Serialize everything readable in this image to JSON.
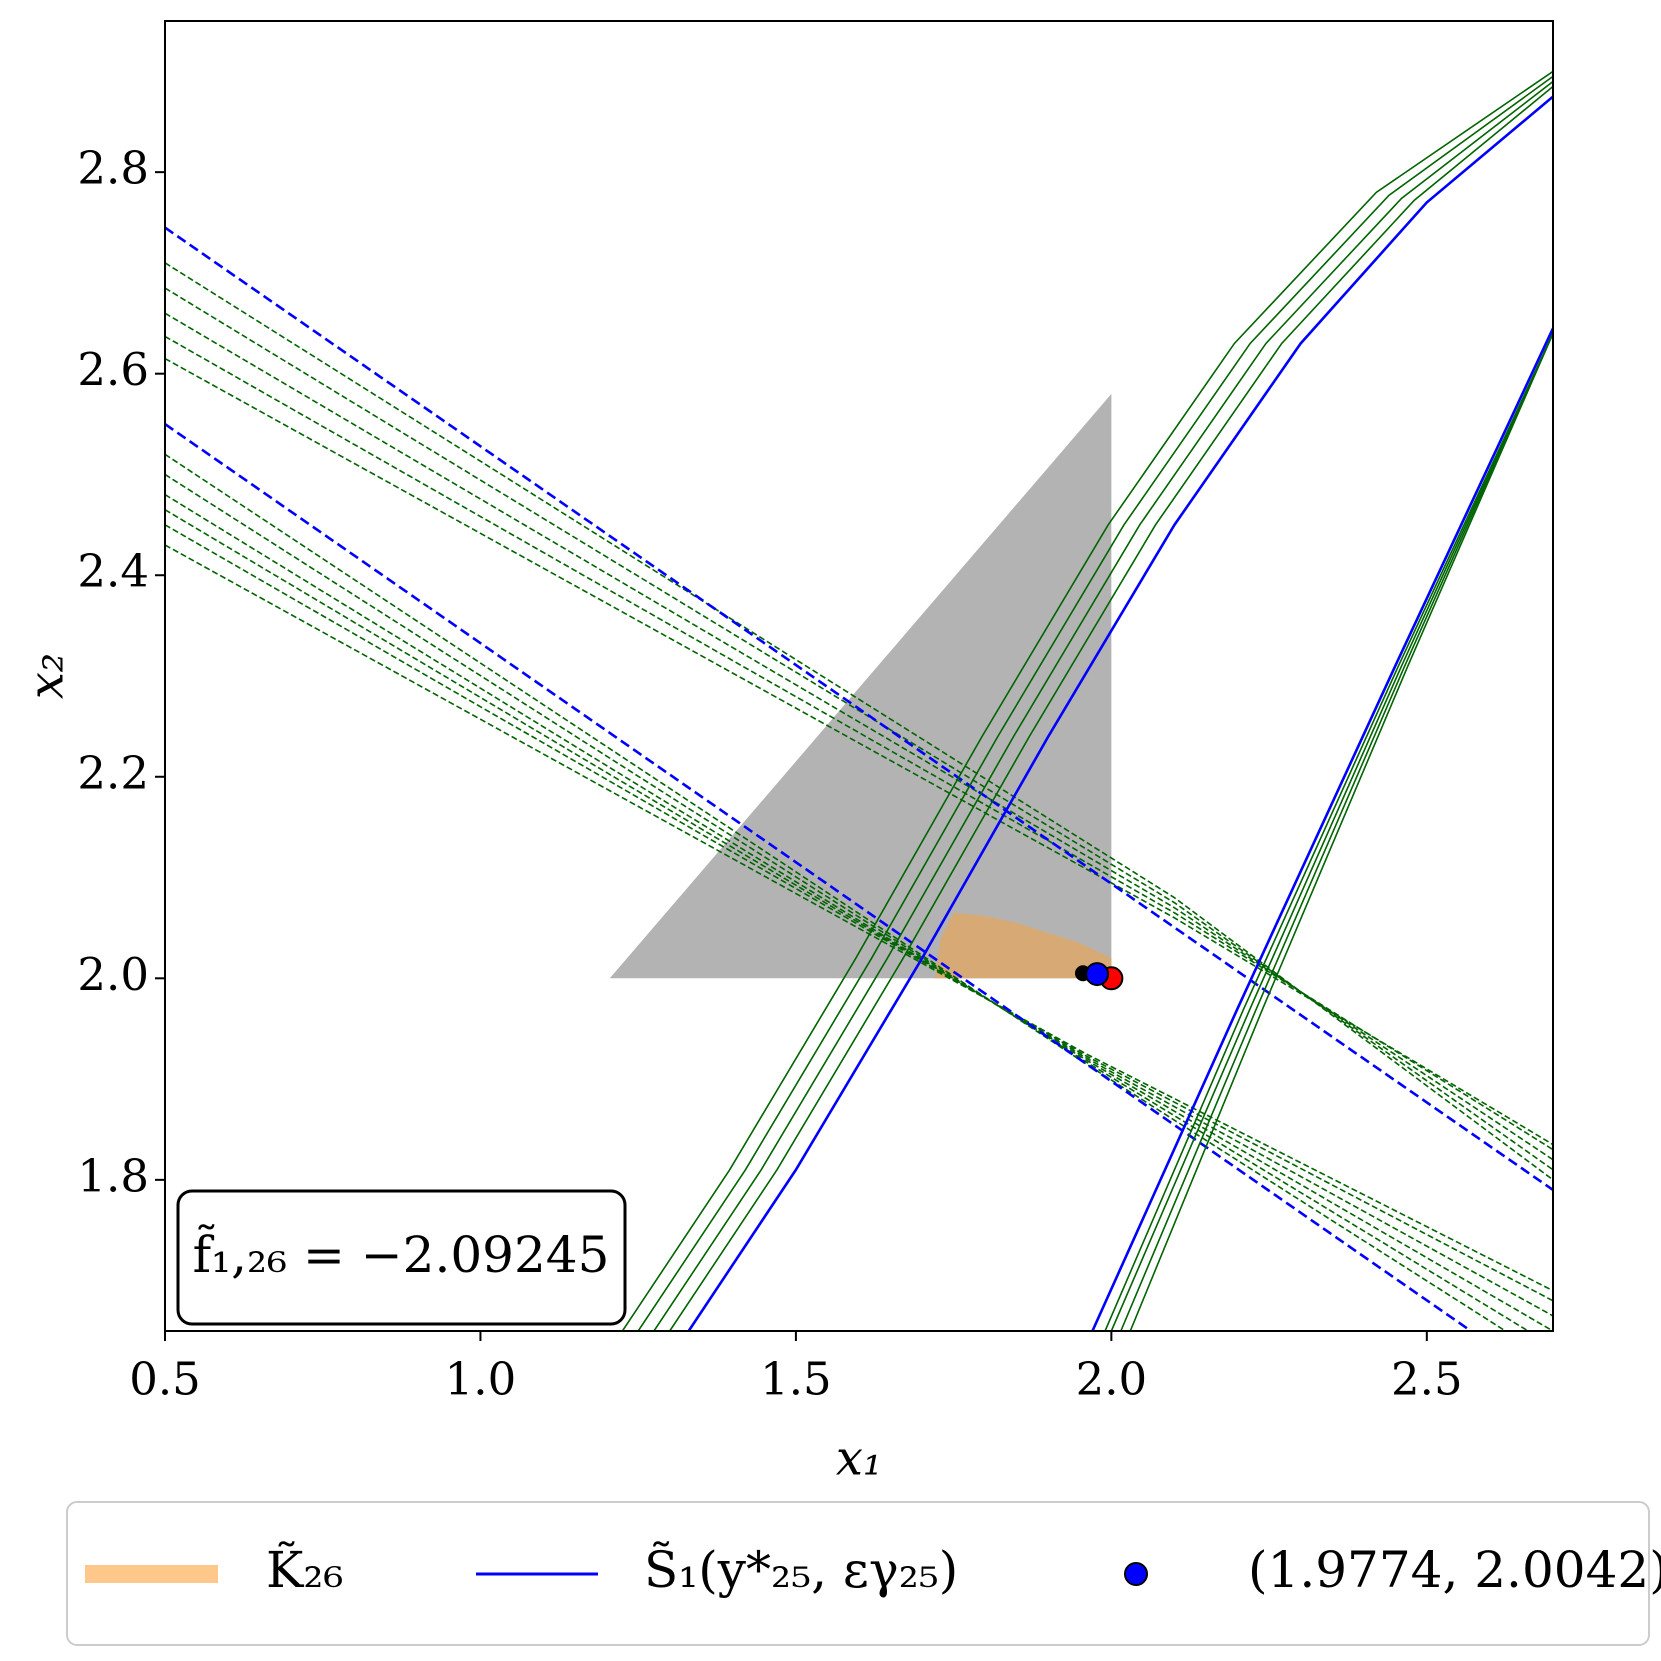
{
  "chart_data": {
    "type": "line",
    "x_label": "x₁",
    "y_label": "x₂",
    "annotation": "f̃₁,₂₆ = −2.09245",
    "xlim": [
      0.5,
      2.7
    ],
    "ylim": [
      1.65,
      2.95
    ],
    "xticks": [
      0.5,
      {
        "value": 1,
        "label": "1.0"
      },
      1.5,
      {
        "value": 2,
        "label": "2.0"
      },
      2.5
    ],
    "yticks": [
      1.8,
      {
        "value": 2,
        "label": "2.0"
      },
      2.2,
      2.4,
      2.6,
      2.8
    ],
    "series": [
      {
        "kind": "fill",
        "color": "#b3b3b3",
        "x": [
          1.205,
          2.0,
          2.0
        ],
        "values": [
          2.0,
          2.58,
          2.0
        ]
      },
      {
        "kind": "fill",
        "name": "K̃₂₆",
        "color": "#fdc88a",
        "x": [
          1.72,
          1.73,
          1.75,
          1.8,
          1.85,
          1.9,
          1.95,
          2.0,
          2.0
        ],
        "values": [
          2.0,
          2.04,
          2.065,
          2.062,
          2.055,
          2.045,
          2.035,
          2.02,
          2.0
        ]
      },
      {
        "kind": "line",
        "style": "dashed",
        "color": "#006400",
        "x": [
          0.5,
          2.1,
          2.7
        ],
        "values": [
          2.71,
          2.08,
          1.8
        ]
      },
      {
        "kind": "line",
        "style": "dashed",
        "color": "#006400",
        "x": [
          0.5,
          2.1,
          2.7
        ],
        "values": [
          2.685,
          2.075,
          1.81
        ]
      },
      {
        "kind": "line",
        "style": "dashed",
        "color": "#006400",
        "x": [
          0.5,
          2.1,
          2.7
        ],
        "values": [
          2.66,
          2.07,
          1.82
        ]
      },
      {
        "kind": "line",
        "style": "dashed",
        "color": "#006400",
        "x": [
          0.5,
          2.1,
          2.7
        ],
        "values": [
          2.637,
          2.065,
          1.83
        ]
      },
      {
        "kind": "line",
        "style": "dashed",
        "color": "#006400",
        "x": [
          0.5,
          2.1,
          2.7
        ],
        "values": [
          2.615,
          2.06,
          1.835
        ]
      },
      {
        "kind": "line",
        "style": "dashed",
        "color": "#0000ff",
        "x": [
          0.5,
          2.7
        ],
        "values": [
          2.745,
          1.79
        ]
      },
      {
        "kind": "line",
        "style": "dashed",
        "color": "#006400",
        "x": [
          0.5,
          1.96,
          2.7
        ],
        "values": [
          2.52,
          1.915,
          1.62
        ]
      },
      {
        "kind": "line",
        "style": "dashed",
        "color": "#006400",
        "x": [
          0.5,
          1.96,
          2.7
        ],
        "values": [
          2.5,
          1.917,
          1.635
        ]
      },
      {
        "kind": "line",
        "style": "dashed",
        "color": "#006400",
        "x": [
          0.5,
          1.96,
          2.7
        ],
        "values": [
          2.48,
          1.919,
          1.65
        ]
      },
      {
        "kind": "line",
        "style": "dashed",
        "color": "#006400",
        "x": [
          0.5,
          1.96,
          2.7
        ],
        "values": [
          2.465,
          1.921,
          1.665
        ]
      },
      {
        "kind": "line",
        "style": "dashed",
        "color": "#006400",
        "x": [
          0.5,
          1.96,
          2.7
        ],
        "values": [
          2.45,
          1.923,
          1.68
        ]
      },
      {
        "kind": "line",
        "style": "dashed",
        "color": "#006400",
        "x": [
          0.5,
          1.96,
          2.7
        ],
        "values": [
          2.43,
          1.925,
          1.69
        ]
      },
      {
        "kind": "line",
        "style": "dashed",
        "color": "#0000ff",
        "x": [
          0.5,
          2.57
        ],
        "values": [
          2.55,
          1.65
        ]
      },
      {
        "kind": "line",
        "style": "solid",
        "color": "#006400",
        "x": [
          1.225,
          1.395,
          1.595,
          1.795,
          1.995,
          2.195,
          2.42,
          2.7
        ],
        "values": [
          1.65,
          1.81,
          2.02,
          2.24,
          2.45,
          2.63,
          2.78,
          2.9
        ]
      },
      {
        "kind": "line",
        "style": "solid",
        "color": "#006400",
        "x": [
          1.25,
          1.42,
          1.62,
          1.82,
          2.02,
          2.22,
          2.44,
          2.7
        ],
        "values": [
          1.65,
          1.81,
          2.02,
          2.24,
          2.45,
          2.63,
          2.777,
          2.895
        ]
      },
      {
        "kind": "line",
        "style": "solid",
        "color": "#006400",
        "x": [
          1.275,
          1.445,
          1.645,
          1.845,
          2.045,
          2.245,
          2.46,
          2.7
        ],
        "values": [
          1.65,
          1.81,
          2.02,
          2.24,
          2.45,
          2.63,
          2.774,
          2.89
        ]
      },
      {
        "kind": "line",
        "style": "solid",
        "color": "#006400",
        "x": [
          1.3,
          1.47,
          1.67,
          1.87,
          2.07,
          2.27,
          2.48,
          2.7
        ],
        "values": [
          1.65,
          1.81,
          2.02,
          2.24,
          2.45,
          2.63,
          2.772,
          2.885
        ]
      },
      {
        "kind": "line",
        "style": "solid",
        "name": "S̃₁(y*₂₅, εγ₂₅)",
        "color": "#0000ff",
        "x": [
          1.33,
          1.5,
          1.7,
          1.9,
          2.1,
          2.3,
          2.5,
          2.7
        ],
        "values": [
          1.65,
          1.81,
          2.02,
          2.24,
          2.45,
          2.63,
          2.77,
          2.875
        ]
      },
      {
        "kind": "line",
        "style": "solid",
        "color": "#006400",
        "x": [
          1.99,
          2.21,
          2.455,
          2.7
        ],
        "values": [
          1.65,
          1.97,
          2.31,
          2.64
        ]
      },
      {
        "kind": "line",
        "style": "solid",
        "color": "#006400",
        "x": [
          2.0,
          2.22,
          2.46,
          2.7
        ],
        "values": [
          1.65,
          1.97,
          2.31,
          2.64
        ]
      },
      {
        "kind": "line",
        "style": "solid",
        "color": "#006400",
        "x": [
          2.015,
          2.23,
          2.465,
          2.7
        ],
        "values": [
          1.65,
          1.97,
          2.31,
          2.64
        ]
      },
      {
        "kind": "line",
        "style": "solid",
        "color": "#006400",
        "x": [
          2.03,
          2.24,
          2.47,
          2.7
        ],
        "values": [
          1.65,
          1.97,
          2.31,
          2.64
        ]
      },
      {
        "kind": "line",
        "style": "solid",
        "color": "#0000ff",
        "x": [
          1.97,
          2.2,
          2.45,
          2.7
        ],
        "values": [
          1.65,
          1.97,
          2.31,
          2.645
        ]
      },
      {
        "kind": "point",
        "color": "#000000",
        "size": 7,
        "x": [
          1.955
        ],
        "values": [
          2.005
        ]
      },
      {
        "kind": "point",
        "color": "#ff0000",
        "size": 11,
        "x": [
          2.0
        ],
        "values": [
          2.0
        ]
      },
      {
        "kind": "point",
        "name": "(1.9774, 2.0042)",
        "color": "#0000ff",
        "size": 11,
        "x": [
          1.9774
        ],
        "values": [
          2.0042
        ]
      }
    ]
  }
}
